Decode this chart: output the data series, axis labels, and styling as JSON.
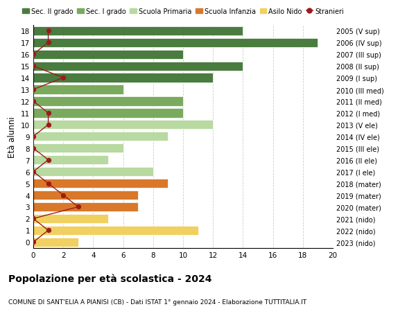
{
  "ages": [
    18,
    17,
    16,
    15,
    14,
    13,
    12,
    11,
    10,
    9,
    8,
    7,
    6,
    5,
    4,
    3,
    2,
    1,
    0
  ],
  "right_labels": [
    "2005 (V sup)",
    "2006 (IV sup)",
    "2007 (III sup)",
    "2008 (II sup)",
    "2009 (I sup)",
    "2010 (III med)",
    "2011 (II med)",
    "2012 (I med)",
    "2013 (V ele)",
    "2014 (IV ele)",
    "2015 (III ele)",
    "2016 (II ele)",
    "2017 (I ele)",
    "2018 (mater)",
    "2019 (mater)",
    "2020 (mater)",
    "2021 (nido)",
    "2022 (nido)",
    "2023 (nido)"
  ],
  "bar_values": [
    14,
    19,
    10,
    14,
    12,
    6,
    10,
    10,
    12,
    9,
    6,
    5,
    8,
    9,
    7,
    7,
    5,
    11,
    3
  ],
  "bar_colors": [
    "#4a7c3f",
    "#4a7c3f",
    "#4a7c3f",
    "#4a7c3f",
    "#4a7c3f",
    "#7aaa5e",
    "#7aaa5e",
    "#7aaa5e",
    "#b8d9a0",
    "#b8d9a0",
    "#b8d9a0",
    "#b8d9a0",
    "#b8d9a0",
    "#d9782a",
    "#d9782a",
    "#d9782a",
    "#f0d060",
    "#f0d060",
    "#f0d060"
  ],
  "stranieri_values": [
    1,
    1,
    0,
    0,
    2,
    0,
    0,
    1,
    1,
    0,
    0,
    1,
    0,
    1,
    2,
    3,
    0,
    1,
    0
  ],
  "stranieri_color": "#9b1b1b",
  "legend_items": [
    {
      "label": "Sec. II grado",
      "color": "#4a7c3f"
    },
    {
      "label": "Sec. I grado",
      "color": "#7aaa5e"
    },
    {
      "label": "Scuola Primaria",
      "color": "#b8d9a0"
    },
    {
      "label": "Scuola Infanzia",
      "color": "#d9782a"
    },
    {
      "label": "Asilo Nido",
      "color": "#f0d060"
    },
    {
      "label": "Stranieri",
      "color": "#9b1b1b"
    }
  ],
  "title": "Popolazione per età scolastica - 2024",
  "subtitle": "COMUNE DI SANT'ELIA A PIANISI (CB) - Dati ISTAT 1° gennaio 2024 - Elaborazione TUTTITALIA.IT",
  "ylabel_left": "Età alunni",
  "xlim": [
    0,
    20
  ],
  "xticks": [
    0,
    2,
    4,
    6,
    8,
    10,
    12,
    14,
    16,
    18,
    20
  ],
  "background_color": "#ffffff",
  "grid_color": "#cccccc"
}
